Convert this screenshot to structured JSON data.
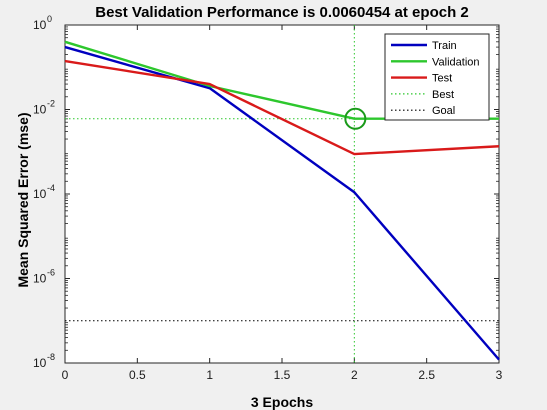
{
  "chart_data": {
    "type": "line",
    "title": "Best Validation Performance is 0.0060454 at epoch 2",
    "xlabel": "3 Epochs",
    "ylabel": "Mean Squared Error  (mse)",
    "xlim": [
      0,
      3
    ],
    "ylim": [
      1e-08,
      1
    ],
    "yscale": "log",
    "grid": false,
    "legend_position": "top-right",
    "x_ticks": [
      "0",
      "0.5",
      "1",
      "1.5",
      "2",
      "2.5",
      "3"
    ],
    "y_ticks": [
      {
        "base": "10",
        "exp": "0",
        "value": 1
      },
      {
        "base": "10",
        "exp": "-2",
        "value": 0.01
      },
      {
        "base": "10",
        "exp": "-4",
        "value": 0.0001
      },
      {
        "base": "10",
        "exp": "-6",
        "value": 1e-06
      },
      {
        "base": "10",
        "exp": "-8",
        "value": 1e-08
      }
    ],
    "x": [
      0,
      1,
      2,
      3
    ],
    "series": [
      {
        "name": "Train",
        "color": "#0000bf",
        "style": "solid",
        "values": [
          0.3,
          0.032,
          0.00011,
          1.2e-08
        ]
      },
      {
        "name": "Validation",
        "color": "#2dc72d",
        "style": "solid",
        "values": [
          0.4,
          0.036,
          0.0060454,
          0.0060454
        ]
      },
      {
        "name": "Test",
        "color": "#d91a1a",
        "style": "solid",
        "values": [
          0.14,
          0.04,
          0.00088,
          0.00135
        ]
      }
    ],
    "best": {
      "name": "Best",
      "epoch": 2,
      "value": 0.0060454,
      "color": "#2dc72d",
      "style": "dotted"
    },
    "goal": {
      "name": "Goal",
      "value": 1e-07,
      "color": "#000000",
      "style": "dotted"
    }
  }
}
